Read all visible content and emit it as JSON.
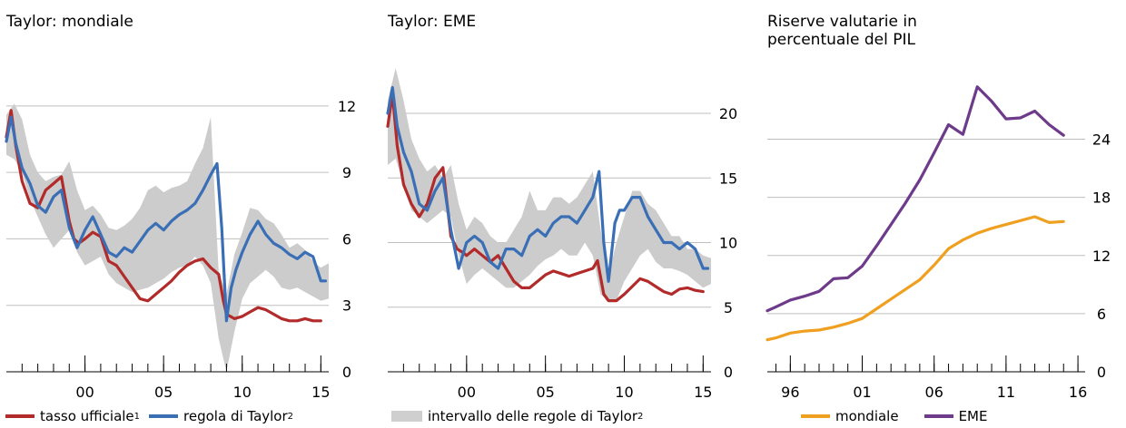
{
  "colors": {
    "red": "#b22a2a",
    "blue": "#3a6fb6",
    "band": "#cccccc",
    "orange": "#f0a020",
    "purple": "#6e3a8a"
  },
  "panels": {
    "p1": {
      "title": "Taylor: mondiale"
    },
    "p2": {
      "title": "Taylor: EME"
    },
    "p3": {
      "title": "Riserve valutarie in percentuale del PIL"
    }
  },
  "legend1": {
    "a_label": "tasso ufficiale",
    "a_sup": "1",
    "b_label": "regola di Taylor",
    "b_sup": "2"
  },
  "legend2": {
    "a_label": "intervallo delle regole di Taylor",
    "a_sup": "2"
  },
  "legend3": {
    "a_label": "mondiale",
    "b_label": "EME"
  },
  "chart_data": [
    {
      "type": "line",
      "title": "Taylor: mondiale",
      "xlim": [
        1995.0,
        2015.5
      ],
      "ylim": [
        0,
        14
      ],
      "yticks": [
        0,
        3,
        6,
        9,
        12
      ],
      "xtick_labels": [
        {
          "x": 2000,
          "label": "00"
        },
        {
          "x": 2005,
          "label": "05"
        },
        {
          "x": 2010,
          "label": "10"
        },
        {
          "x": 2015,
          "label": "15"
        }
      ],
      "minor_xticks": [
        1996,
        1997,
        1998,
        1999,
        2000,
        2001,
        2002,
        2003,
        2004,
        2005,
        2006,
        2007,
        2008,
        2009,
        2010,
        2011,
        2012,
        2013,
        2014,
        2015
      ],
      "band": {
        "x": [
          1995.0,
          1995.5,
          1996.0,
          1996.5,
          1997.0,
          1997.5,
          1998.0,
          1998.5,
          1999.0,
          1999.5,
          2000.0,
          2000.5,
          2001.0,
          2001.5,
          2002.0,
          2002.5,
          2003.0,
          2003.5,
          2004.0,
          2004.5,
          2005.0,
          2005.5,
          2006.0,
          2006.5,
          2007.0,
          2007.5,
          2008.0,
          2008.5,
          2009.0,
          2009.5,
          2010.0,
          2010.5,
          2011.0,
          2011.5,
          2012.0,
          2012.5,
          2013.0,
          2013.5,
          2014.0,
          2014.5,
          2015.0,
          2015.5
        ],
        "lower": [
          9.8,
          9.6,
          9.0,
          7.8,
          7.0,
          6.2,
          5.6,
          6.0,
          6.4,
          5.4,
          4.8,
          5.0,
          5.2,
          4.4,
          4.0,
          3.8,
          3.6,
          3.7,
          3.8,
          4.0,
          4.2,
          4.5,
          4.7,
          4.8,
          5.2,
          4.8,
          4.0,
          1.5,
          0.0,
          1.8,
          3.3,
          4.0,
          4.3,
          4.6,
          4.3,
          3.8,
          3.7,
          3.8,
          3.6,
          3.4,
          3.2,
          3.3
        ],
        "upper": [
          11.6,
          12.1,
          11.4,
          9.8,
          9.0,
          8.6,
          8.8,
          8.9,
          9.5,
          8.2,
          7.3,
          7.5,
          7.1,
          6.5,
          6.4,
          6.6,
          6.9,
          7.4,
          8.2,
          8.4,
          8.1,
          8.3,
          8.4,
          8.6,
          9.4,
          10.1,
          11.5,
          4.5,
          3.5,
          5.3,
          6.3,
          7.4,
          7.3,
          6.9,
          6.7,
          6.2,
          5.6,
          5.8,
          5.5,
          5.0,
          4.7,
          4.9
        ]
      },
      "series": [
        {
          "name": "tasso ufficiale",
          "color": "#b22a2a",
          "x": [
            1995.0,
            1995.3,
            1995.6,
            1996.0,
            1996.5,
            1997.0,
            1997.5,
            1998.0,
            1998.5,
            1999.0,
            1999.3,
            1999.6,
            2000.0,
            2000.5,
            2001.0,
            2001.5,
            2002.0,
            2002.5,
            2003.0,
            2003.5,
            2004.0,
            2004.5,
            2005.0,
            2005.5,
            2006.0,
            2006.5,
            2007.0,
            2007.5,
            2008.0,
            2008.5,
            2008.8,
            2009.0,
            2009.5,
            2010.0,
            2010.5,
            2011.0,
            2011.5,
            2012.0,
            2012.5,
            2013.0,
            2013.5,
            2014.0,
            2014.5,
            2015.0
          ],
          "y": [
            10.6,
            11.8,
            10.2,
            8.6,
            7.6,
            7.4,
            8.2,
            8.5,
            8.8,
            6.8,
            6.0,
            5.8,
            6.0,
            6.3,
            6.1,
            5.0,
            4.8,
            4.3,
            3.8,
            3.3,
            3.2,
            3.5,
            3.8,
            4.1,
            4.5,
            4.8,
            5.0,
            5.1,
            4.7,
            4.4,
            3.2,
            2.6,
            2.4,
            2.5,
            2.7,
            2.9,
            2.8,
            2.6,
            2.4,
            2.3,
            2.3,
            2.4,
            2.3,
            2.3
          ]
        },
        {
          "name": "regola di Taylor",
          "color": "#3a6fb6",
          "x": [
            1995.0,
            1995.3,
            1995.6,
            1996.0,
            1996.5,
            1997.0,
            1997.5,
            1998.0,
            1998.5,
            1999.0,
            1999.5,
            2000.0,
            2000.5,
            2001.0,
            2001.5,
            2002.0,
            2002.5,
            2003.0,
            2003.5,
            2004.0,
            2004.5,
            2005.0,
            2005.5,
            2006.0,
            2006.5,
            2007.0,
            2007.5,
            2008.0,
            2008.4,
            2008.7,
            2009.0,
            2009.3,
            2009.6,
            2010.0,
            2010.5,
            2011.0,
            2011.5,
            2012.0,
            2012.5,
            2013.0,
            2013.5,
            2014.0,
            2014.5,
            2015.0,
            2015.3
          ],
          "y": [
            10.4,
            11.5,
            10.3,
            9.2,
            8.5,
            7.5,
            7.2,
            7.9,
            8.2,
            6.5,
            5.6,
            6.4,
            7.0,
            6.2,
            5.4,
            5.2,
            5.6,
            5.4,
            5.9,
            6.4,
            6.7,
            6.4,
            6.8,
            7.1,
            7.3,
            7.6,
            8.2,
            8.9,
            9.4,
            6.5,
            2.3,
            3.8,
            4.6,
            5.4,
            6.2,
            6.8,
            6.2,
            5.8,
            5.6,
            5.3,
            5.1,
            5.4,
            5.2,
            4.1,
            4.1
          ]
        }
      ]
    },
    {
      "type": "line",
      "title": "Taylor: EME",
      "xlim": [
        1995.0,
        2015.5
      ],
      "ylim": [
        0,
        24
      ],
      "yticks": [
        0,
        5,
        10,
        15,
        20
      ],
      "xtick_labels": [
        {
          "x": 2000,
          "label": "00"
        },
        {
          "x": 2005,
          "label": "05"
        },
        {
          "x": 2010,
          "label": "10"
        },
        {
          "x": 2015,
          "label": "15"
        }
      ],
      "minor_xticks": [
        1996,
        1997,
        1998,
        1999,
        2000,
        2001,
        2002,
        2003,
        2004,
        2005,
        2006,
        2007,
        2008,
        2009,
        2010,
        2011,
        2012,
        2013,
        2014,
        2015
      ],
      "band": {
        "x": [
          1995.0,
          1995.5,
          1996.0,
          1996.5,
          1997.0,
          1997.5,
          1998.0,
          1998.5,
          1999.0,
          1999.5,
          2000.0,
          2000.5,
          2001.0,
          2001.5,
          2002.0,
          2002.5,
          2003.0,
          2003.5,
          2004.0,
          2004.5,
          2005.0,
          2005.5,
          2006.0,
          2006.5,
          2007.0,
          2007.5,
          2008.0,
          2008.5,
          2009.0,
          2009.5,
          2010.0,
          2010.5,
          2011.0,
          2011.5,
          2012.0,
          2012.5,
          2013.0,
          2013.5,
          2014.0,
          2014.5,
          2015.0,
          2015.5
        ],
        "lower": [
          16.0,
          16.5,
          14.5,
          12.5,
          12.0,
          11.5,
          12.0,
          12.5,
          12.0,
          9.0,
          6.8,
          7.5,
          8.0,
          7.5,
          7.0,
          6.5,
          6.5,
          7.0,
          7.5,
          8.2,
          8.7,
          9.0,
          9.5,
          9.0,
          9.0,
          10.0,
          9.0,
          6.0,
          5.5,
          5.5,
          7.0,
          8.0,
          9.0,
          9.5,
          8.5,
          8.0,
          8.0,
          7.8,
          7.5,
          7.0,
          6.5,
          6.8
        ],
        "upper": [
          21.0,
          23.5,
          21.0,
          18.0,
          16.5,
          15.5,
          16.0,
          15.0,
          16.0,
          13.0,
          11.0,
          12.0,
          11.5,
          10.5,
          10.0,
          10.0,
          11.0,
          12.0,
          14.0,
          12.5,
          12.5,
          13.5,
          13.5,
          13.0,
          13.5,
          14.5,
          15.5,
          11.0,
          7.5,
          10.0,
          12.0,
          14.0,
          14.0,
          13.0,
          12.5,
          11.5,
          10.5,
          10.5,
          9.5,
          9.5,
          9.0,
          8.8
        ]
      },
      "series": [
        {
          "name": "tasso ufficiale",
          "color": "#b22a2a",
          "x": [
            1995.0,
            1995.3,
            1995.6,
            1996.0,
            1996.5,
            1997.0,
            1997.5,
            1998.0,
            1998.5,
            1999.0,
            1999.4,
            1999.8,
            2000.0,
            2000.5,
            2001.0,
            2001.5,
            2002.0,
            2002.5,
            2003.0,
            2003.5,
            2004.0,
            2004.5,
            2005.0,
            2005.5,
            2006.0,
            2006.5,
            2007.0,
            2007.5,
            2008.0,
            2008.3,
            2008.7,
            2009.0,
            2009.5,
            2010.0,
            2010.5,
            2011.0,
            2011.5,
            2012.0,
            2012.5,
            2013.0,
            2013.5,
            2014.0,
            2014.5,
            2015.0
          ],
          "y": [
            19.0,
            21.5,
            17.5,
            14.5,
            13.0,
            12.0,
            13.0,
            15.0,
            15.8,
            10.5,
            9.5,
            9.2,
            9.0,
            9.5,
            9.0,
            8.5,
            9.0,
            8.0,
            7.0,
            6.5,
            6.5,
            7.0,
            7.5,
            7.8,
            7.6,
            7.4,
            7.6,
            7.8,
            8.0,
            8.6,
            6.0,
            5.5,
            5.5,
            6.0,
            6.6,
            7.2,
            7.0,
            6.6,
            6.2,
            6.0,
            6.4,
            6.5,
            6.3,
            6.2
          ]
        },
        {
          "name": "regola di Taylor",
          "color": "#3a6fb6",
          "x": [
            1995.0,
            1995.3,
            1995.6,
            1996.0,
            1996.5,
            1997.0,
            1997.5,
            1998.0,
            1998.5,
            1999.0,
            1999.5,
            2000.0,
            2000.5,
            2001.0,
            2001.5,
            2002.0,
            2002.5,
            2003.0,
            2003.5,
            2004.0,
            2004.5,
            2005.0,
            2005.5,
            2006.0,
            2006.5,
            2007.0,
            2007.5,
            2008.0,
            2008.4,
            2008.7,
            2009.0,
            2009.4,
            2009.7,
            2010.0,
            2010.5,
            2011.0,
            2011.5,
            2012.0,
            2012.5,
            2013.0,
            2013.5,
            2014.0,
            2014.5,
            2015.0,
            2015.3
          ],
          "y": [
            20.0,
            22.0,
            19.0,
            17.0,
            15.5,
            13.0,
            12.5,
            14.0,
            15.0,
            11.0,
            8.0,
            10.0,
            10.5,
            10.0,
            8.5,
            8.0,
            9.5,
            9.5,
            9.0,
            10.5,
            11.0,
            10.5,
            11.5,
            12.0,
            12.0,
            11.5,
            12.5,
            13.5,
            15.5,
            10.0,
            7.0,
            11.5,
            12.5,
            12.5,
            13.5,
            13.5,
            12.0,
            11.0,
            10.0,
            10.0,
            9.5,
            10.0,
            9.5,
            8.0,
            8.0
          ]
        }
      ]
    },
    {
      "type": "line",
      "title": "Riserve valutarie in percentuale del PIL",
      "xlim": [
        1994.4,
        2016.5
      ],
      "ylim": [
        0,
        32
      ],
      "yticks": [
        0,
        6,
        12,
        18,
        24
      ],
      "xtick_labels": [
        {
          "x": 1996,
          "label": "96"
        },
        {
          "x": 2001,
          "label": "01"
        },
        {
          "x": 2006,
          "label": "06"
        },
        {
          "x": 2011,
          "label": "11"
        },
        {
          "x": 2016,
          "label": "16"
        }
      ],
      "minor_xticks": [
        1995,
        1996,
        1997,
        1998,
        1999,
        2000,
        2001,
        2002,
        2003,
        2004,
        2005,
        2006,
        2007,
        2008,
        2009,
        2010,
        2011,
        2012,
        2013,
        2014,
        2015,
        2016
      ],
      "series": [
        {
          "name": "mondiale",
          "color": "#f0a020",
          "x": [
            1994.4,
            1995,
            1996,
            1997,
            1998,
            1999,
            2000,
            2001,
            2002,
            2003,
            2004,
            2005,
            2006,
            2007,
            2008,
            2009,
            2010,
            2011,
            2012,
            2013,
            2014,
            2015
          ],
          "y": [
            3.3,
            3.5,
            4.0,
            4.2,
            4.3,
            4.6,
            5.0,
            5.5,
            6.5,
            7.5,
            8.5,
            9.5,
            11.0,
            12.7,
            13.6,
            14.3,
            14.8,
            15.2,
            15.6,
            16.0,
            15.4,
            15.5
          ]
        },
        {
          "name": "EME",
          "color": "#6e3a8a",
          "x": [
            1994.4,
            1995,
            1996,
            1997,
            1998,
            1999,
            2000,
            2001,
            2002,
            2003,
            2004,
            2005,
            2006,
            2007,
            2008,
            2009,
            2010,
            2011,
            2012,
            2013,
            2014,
            2015
          ],
          "y": [
            6.3,
            6.7,
            7.4,
            7.8,
            8.3,
            9.6,
            9.7,
            10.9,
            13.0,
            15.2,
            17.4,
            19.8,
            22.6,
            25.5,
            24.5,
            29.4,
            27.9,
            26.1,
            26.2,
            26.9,
            25.5,
            24.4
          ]
        }
      ]
    }
  ]
}
